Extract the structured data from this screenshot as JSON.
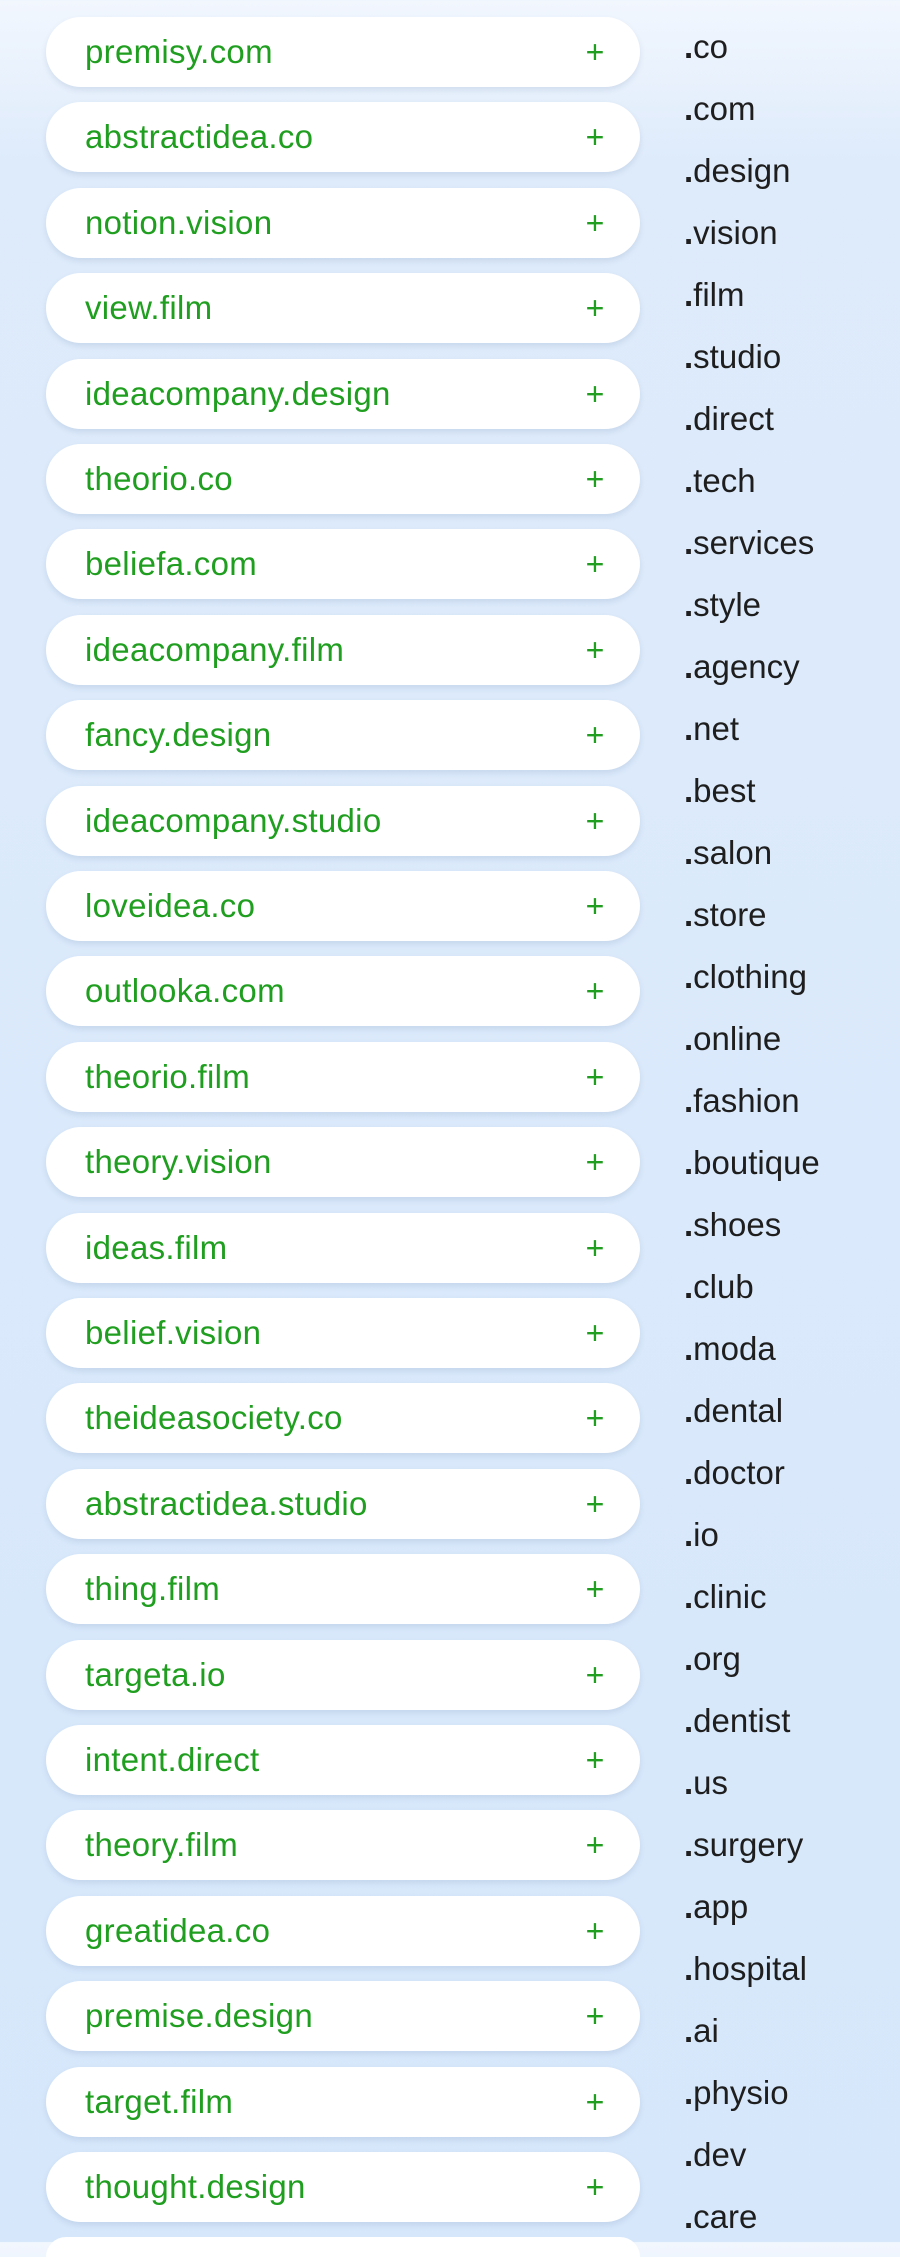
{
  "accent_color": "#1f9e1f",
  "plus_symbol": "+",
  "domains": [
    "premisy.com",
    "abstractidea.co",
    "notion.vision",
    "view.film",
    "ideacompany.design",
    "theorio.co",
    "beliefa.com",
    "ideacompany.film",
    "fancy.design",
    "ideacompany.studio",
    "loveidea.co",
    "outlooka.com",
    "theorio.film",
    "theory.vision",
    "ideas.film",
    "belief.vision",
    "theideasociety.co",
    "abstractidea.studio",
    "thing.film",
    "targeta.io",
    "intent.direct",
    "theory.film",
    "greatidea.co",
    "premise.design",
    "target.film",
    "thought.design"
  ],
  "tlds": [
    ".co",
    ".com",
    ".design",
    ".vision",
    ".film",
    ".studio",
    ".direct",
    ".tech",
    ".services",
    ".style",
    ".agency",
    ".net",
    ".best",
    ".salon",
    ".store",
    ".clothing",
    ".online",
    ".fashion",
    ".boutique",
    ".shoes",
    ".club",
    ".moda",
    ".dental",
    ".doctor",
    ".io",
    ".clinic",
    ".org",
    ".dentist",
    ".us",
    ".surgery",
    ".app",
    ".hospital",
    ".ai",
    ".physio",
    ".dev",
    ".care"
  ]
}
